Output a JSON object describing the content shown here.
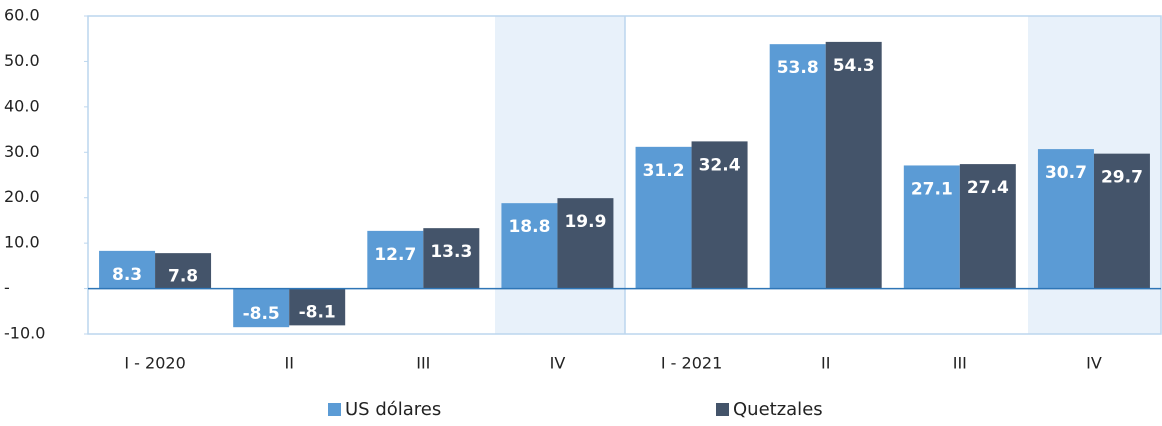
{
  "chart_data": {
    "type": "bar",
    "categories": [
      "I - 2020",
      "II",
      "III",
      "IV",
      "I - 2021",
      "II",
      "III",
      "IV"
    ],
    "series": [
      {
        "name": "US dólares",
        "color": "#5b9bd5",
        "values": [
          8.3,
          -8.5,
          12.7,
          18.8,
          31.2,
          53.8,
          27.1,
          30.7
        ]
      },
      {
        "name": "Quetzales",
        "color": "#44546a",
        "values": [
          7.8,
          -8.1,
          13.3,
          19.9,
          32.4,
          54.3,
          27.4,
          29.7
        ]
      }
    ],
    "ylim": [
      -10,
      60
    ],
    "yticks": [
      {
        "value": -10,
        "label": "-10.0"
      },
      {
        "value": 0,
        "label": "-"
      },
      {
        "value": 10,
        "label": "10.0"
      },
      {
        "value": 20,
        "label": "20.0"
      },
      {
        "value": 30,
        "label": "30.0"
      },
      {
        "value": 40,
        "label": "40.0"
      },
      {
        "value": 50,
        "label": "50.0"
      },
      {
        "value": 60,
        "label": "60.0"
      }
    ],
    "legend": "bottom"
  }
}
